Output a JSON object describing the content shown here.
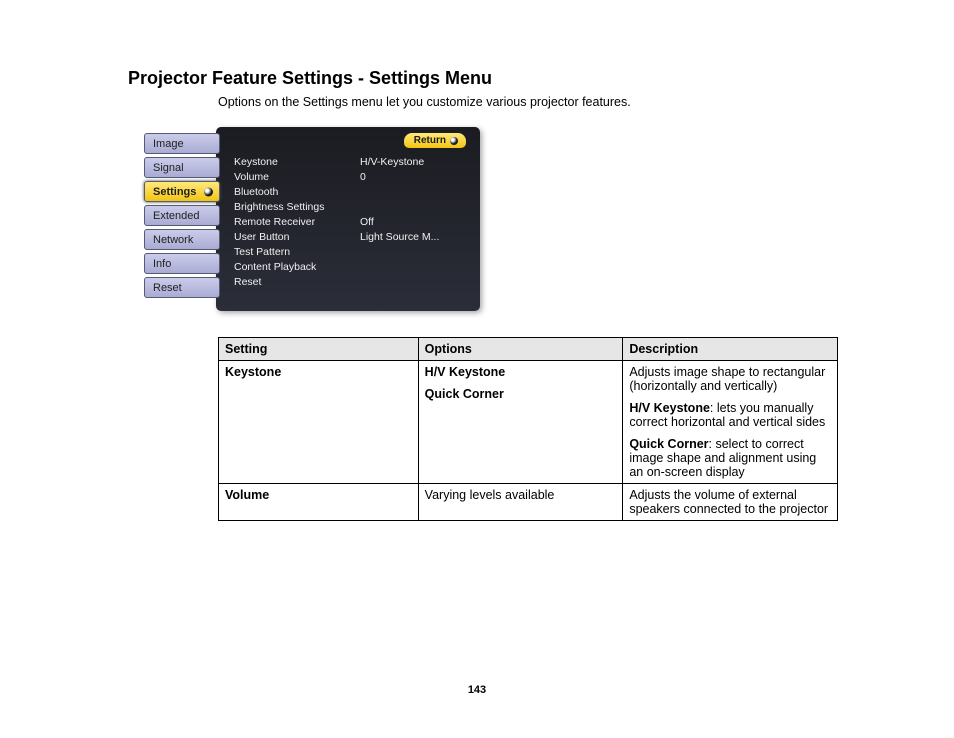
{
  "title": "Projector Feature Settings - Settings Menu",
  "intro": "Options on the Settings menu let you customize various projector features.",
  "osd": {
    "return_label": "Return",
    "sidebar": [
      {
        "label": "Image",
        "selected": false
      },
      {
        "label": "Signal",
        "selected": false
      },
      {
        "label": "Settings",
        "selected": true
      },
      {
        "label": "Extended",
        "selected": false
      },
      {
        "label": "Network",
        "selected": false
      },
      {
        "label": "Info",
        "selected": false
      },
      {
        "label": "Reset",
        "selected": false
      }
    ],
    "items": [
      {
        "label": "Keystone",
        "value": "H/V-Keystone"
      },
      {
        "label": "Volume",
        "value": "0"
      },
      {
        "label": "Bluetooth",
        "value": ""
      },
      {
        "label": "Brightness Settings",
        "value": ""
      },
      {
        "label": "Remote Receiver",
        "value": "Off"
      },
      {
        "label": "User Button",
        "value": "Light Source M..."
      },
      {
        "label": "Test Pattern",
        "value": ""
      },
      {
        "label": "Content Playback",
        "value": ""
      },
      {
        "label": "Reset",
        "value": ""
      }
    ]
  },
  "table": {
    "headers": {
      "setting": "Setting",
      "options": "Options",
      "description": "Description"
    },
    "rows": [
      {
        "setting": "Keystone",
        "options": [
          {
            "text": "H/V Keystone",
            "bold": true
          },
          {
            "text": "Quick Corner",
            "bold": true
          }
        ],
        "description": [
          {
            "lead": "",
            "text": "Adjusts image shape to rectangular (horizontally and vertically)"
          },
          {
            "lead": "H/V Keystone",
            "text": ": lets you manually correct horizontal and vertical sides"
          },
          {
            "lead": "Quick Corner",
            "text": ": select to correct image shape and alignment using an on-screen display"
          }
        ]
      },
      {
        "setting": "Volume",
        "options": [
          {
            "text": "Varying levels available",
            "bold": false
          }
        ],
        "description": [
          {
            "lead": "",
            "text": "Adjusts the volume of external speakers connected to the projector"
          }
        ]
      }
    ]
  },
  "page_number": "143",
  "colors": {
    "sidebar_tab_norm_top": "#cbccea",
    "sidebar_tab_norm_bottom": "#a9abd4",
    "selected_top": "#ffe97a",
    "selected_bottom": "#f3c413",
    "panel_top": "#1b1c21",
    "panel_bottom": "#2b2d39",
    "table_border": "#000000",
    "table_header_bg": "#e6e6e6"
  }
}
